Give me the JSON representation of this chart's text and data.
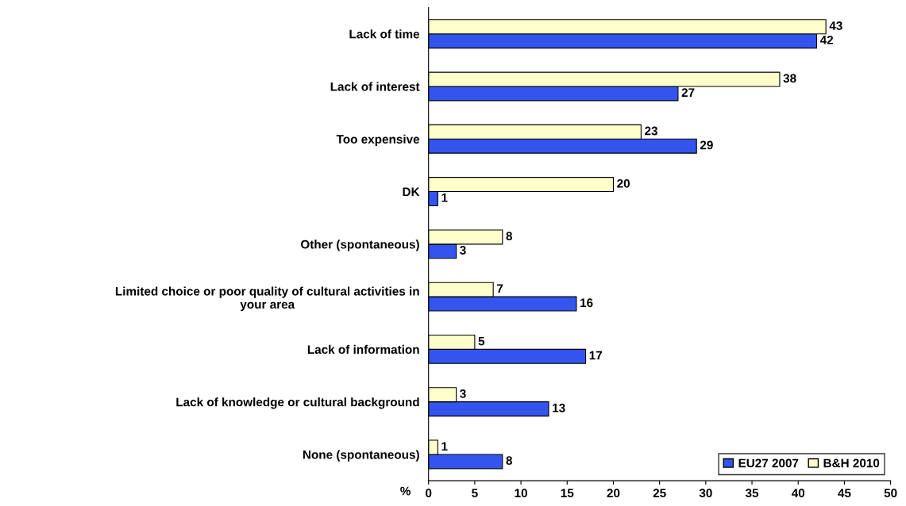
{
  "chart_data": {
    "type": "bar",
    "orientation": "horizontal",
    "categories": [
      "Lack of time",
      "Lack of interest",
      "Too expensive",
      "DK",
      "Other (spontaneous)",
      "Limited choice or poor quality of cultural activities in\nyour area",
      "Lack of information",
      "Lack of knowledge or cultural background",
      "None (spontaneous)"
    ],
    "series": [
      {
        "name": "EU27 2007",
        "color": "#3355ee",
        "values": [
          42,
          27,
          29,
          1,
          3,
          16,
          17,
          13,
          8
        ]
      },
      {
        "name": "B&H 2010",
        "color": "#ffffcc",
        "values": [
          43,
          38,
          23,
          20,
          8,
          7,
          5,
          3,
          1
        ]
      }
    ],
    "xlabel": "%",
    "xlim": [
      0,
      50
    ],
    "xticks": [
      0,
      5,
      10,
      15,
      20,
      25,
      30,
      35,
      40,
      45,
      50
    ],
    "data_labels": true,
    "grid": false,
    "legend": "bottom right"
  }
}
